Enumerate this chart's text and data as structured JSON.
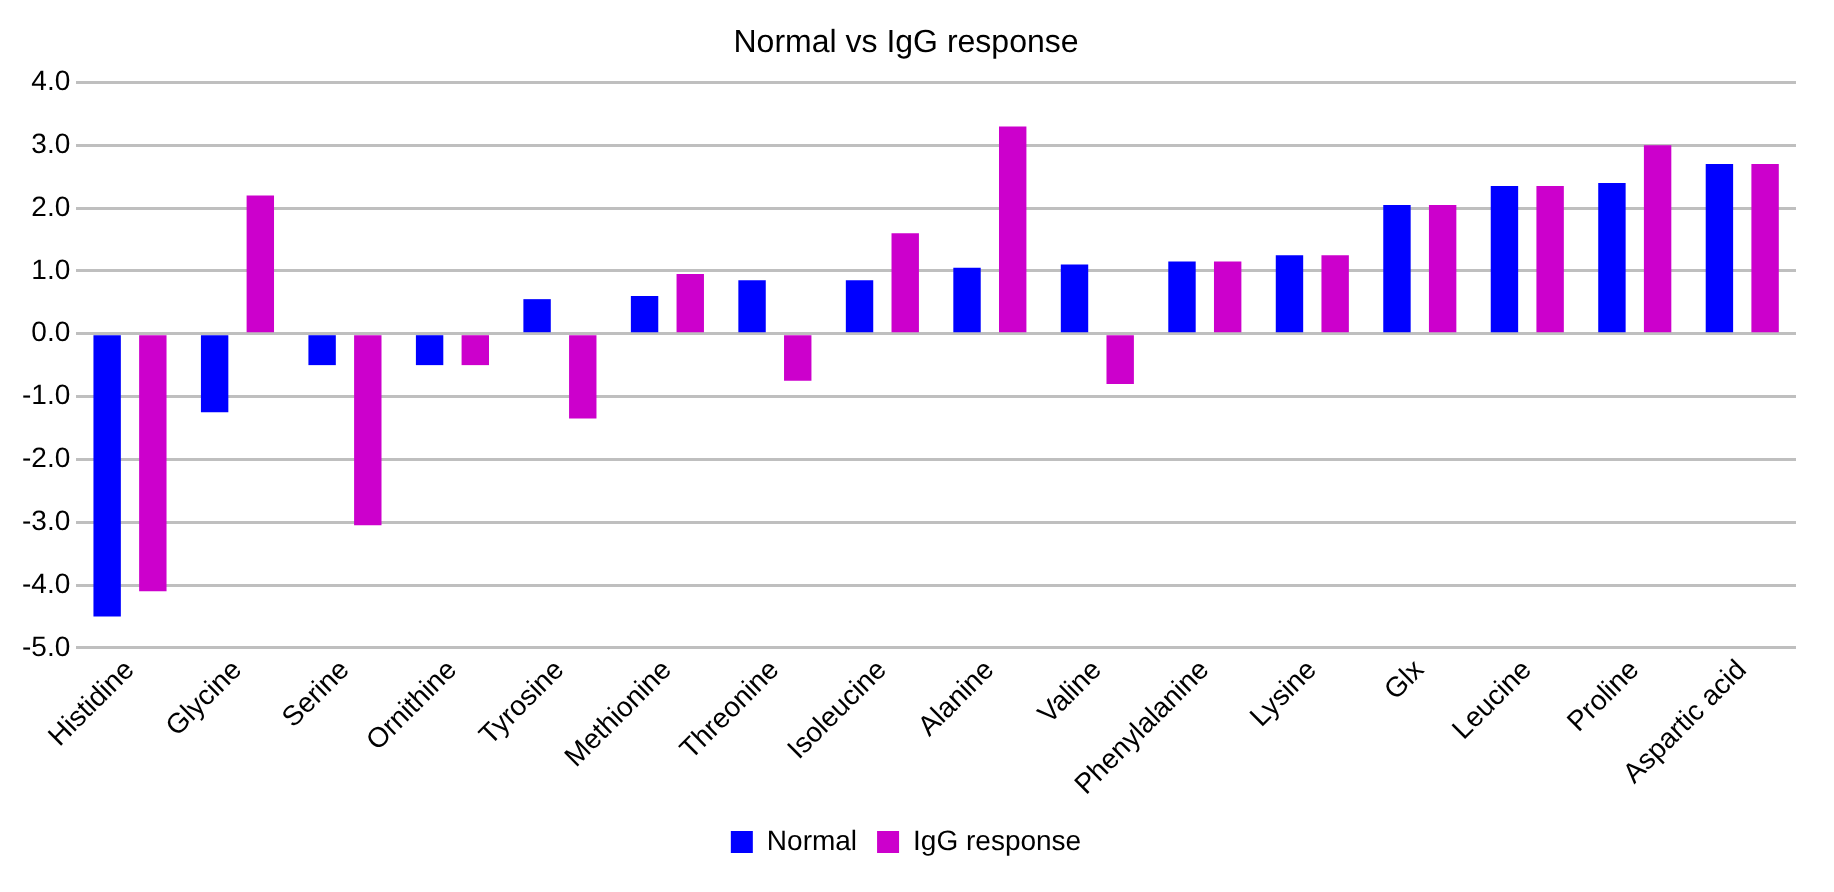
{
  "chart_data": {
    "type": "bar",
    "title": "Normal vs IgG response",
    "categories": [
      "Histidine",
      "Glycine",
      "Serine",
      "Ornithine",
      "Tyrosine",
      "Methionine",
      "Threonine",
      "Isoleucine",
      "Alanine",
      "Valine",
      "Phenylalanine",
      "Lysine",
      "Glx",
      "Leucine",
      "Proline",
      "Aspartic acid"
    ],
    "series": [
      {
        "name": "Normal",
        "color": "#0000ff",
        "values": [
          -4.5,
          -1.25,
          -0.5,
          -0.5,
          0.55,
          0.6,
          0.85,
          0.85,
          1.05,
          1.1,
          1.15,
          1.25,
          2.05,
          2.35,
          2.4,
          2.7
        ]
      },
      {
        "name": "IgG response",
        "color": "#cc00cc",
        "values": [
          -4.1,
          2.2,
          -3.05,
          -0.5,
          -1.35,
          0.95,
          -0.75,
          1.6,
          3.3,
          -0.8,
          1.15,
          1.25,
          2.05,
          2.35,
          3.0,
          2.7
        ]
      }
    ],
    "ylim": [
      -5,
      4
    ],
    "yticks": [
      {
        "value": -5,
        "label": "-5.0"
      },
      {
        "value": -4,
        "label": "-4.0"
      },
      {
        "value": -3,
        "label": "-3.0"
      },
      {
        "value": -2,
        "label": "-2.0"
      },
      {
        "value": -1,
        "label": "-1.0"
      },
      {
        "value": 0,
        "label": "0.0"
      },
      {
        "value": 1,
        "label": "1.0"
      },
      {
        "value": 2,
        "label": "2.0"
      },
      {
        "value": 3,
        "label": "3.0"
      },
      {
        "value": 4,
        "label": "4.0"
      }
    ],
    "grid": "y",
    "legend": "bottom"
  }
}
